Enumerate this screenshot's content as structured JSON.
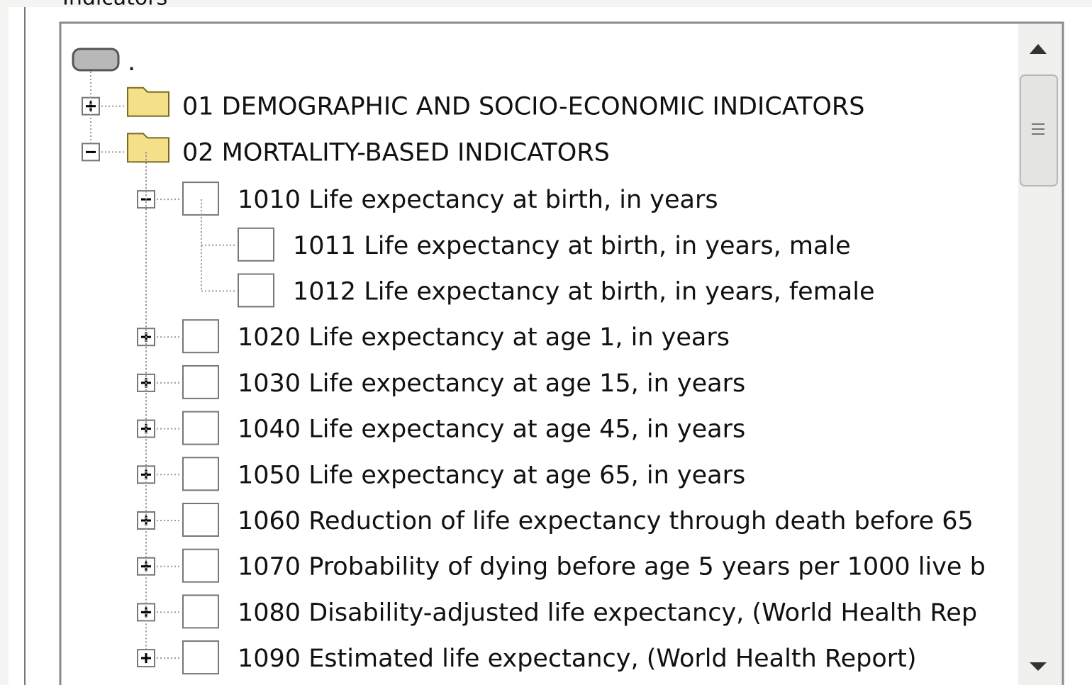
{
  "panel_label": "Indicators",
  "tree": {
    "label": ".",
    "children": [
      {
        "label": "01 DEMOGRAPHIC AND SOCIO-ECONOMIC INDICATORS",
        "expanded": false
      },
      {
        "label": "02 MORTALITY-BASED INDICATORS",
        "expanded": true,
        "children": [
          {
            "label": "1010 Life expectancy at birth, in years",
            "expanded": true,
            "children": [
              {
                "label": "1011 Life expectancy at birth, in years, male"
              },
              {
                "label": "1012 Life expectancy at birth, in years, female"
              }
            ]
          },
          {
            "label": "1020 Life expectancy at age 1, in years",
            "expanded": false
          },
          {
            "label": "1030 Life expectancy at age 15, in years",
            "expanded": false
          },
          {
            "label": "1040 Life expectancy at age 45, in years",
            "expanded": false
          },
          {
            "label": "1050 Life expectancy at age 65, in years",
            "expanded": false
          },
          {
            "label": "1060 Reduction of life expectancy through death before 65",
            "expanded": false
          },
          {
            "label": "1070 Probability of dying before age 5 years per 1000 live b",
            "expanded": false
          },
          {
            "label": "1080 Disability-adjusted life expectancy, (World Health Rep",
            "expanded": false
          },
          {
            "label": "1090 Estimated life expectancy, (World Health Report)",
            "expanded": false
          }
        ]
      }
    ]
  }
}
